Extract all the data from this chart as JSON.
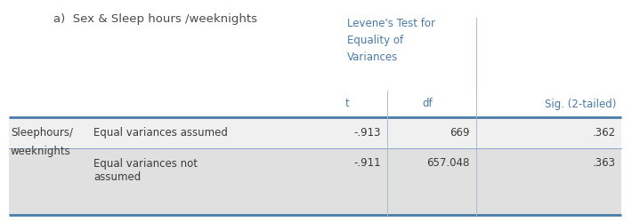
{
  "title": "a)  Sex & Sleep hours /weeknights",
  "title_color": "#4a4a4a",
  "title_fontsize": 9.5,
  "header_group": "Levene's Test for\nEquality of\nVariances",
  "header_group_color": "#4a7aa7",
  "col_headers": [
    "t",
    "df",
    "Sig. (2-tailed)"
  ],
  "col_header_color": "#4a7aa7",
  "row_label_main": [
    "Sleephours/",
    "weeknights"
  ],
  "row_sub_labels_r1": "Equal variances assumed",
  "row_sub_labels_r2a": "Equal variances not",
  "row_sub_labels_r2b": "assumed",
  "data_r1": [
    "-.913",
    "669",
    ".362"
  ],
  "data_r2": [
    "-.911",
    "657.048",
    ".363"
  ],
  "bg_row1": "#f0f0f0",
  "bg_row2": "#e0e0e0",
  "text_color": "#3a3a3a",
  "border_color": "#4a7aa7",
  "divider_color": "#8aaacc",
  "font_size": 8.5,
  "font_size_header": 8.5
}
